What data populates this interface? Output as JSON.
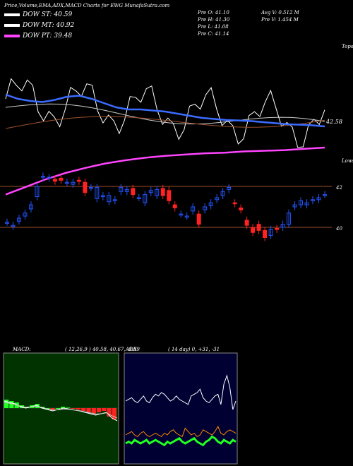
{
  "header": {
    "title": "Price,Volume,EMA,ADX,MACD Charts for EWG MunafaSutra.com",
    "prev_open": "Pre  O: 41.10",
    "prev_high": "Pre  H: 41.30",
    "prev_low": "Pre  L: 41.08",
    "prev_close": "Pre  C: 41.14",
    "avg_volume": "Avg V: 0.512  M",
    "prev_volume": "Pre  V: 1.454  M"
  },
  "legend": [
    {
      "label": "DOW ST: 40.59",
      "color": "#ffffff"
    },
    {
      "label": "DOW MT: 40.92",
      "color": "#ffffff"
    },
    {
      "label": "DOW PT: 39.48",
      "color": "#ff44ff"
    }
  ],
  "price_labels": {
    "tops": "Tops",
    "lows": "Lows",
    "ema_value": "42.58",
    "level_42": "42",
    "level_40": "40"
  },
  "macd": {
    "label": "MACD:",
    "params": "( 12,26,9 ) 40.58, 40.67, -0.09"
  },
  "adx": {
    "label": "ADX",
    "params": "( 14  day) 0, +31, -31"
  },
  "colors": {
    "up": "#2255ff",
    "down": "#ff2222",
    "ema_fast": "#3a6cff",
    "pt": "#ff44ff",
    "adx_plus": "#22ff22",
    "adx_minus": "#ff8800",
    "macd_bg": "#003300",
    "adx_bg": "#000033"
  },
  "chart_data": [
    {
      "type": "candlestick",
      "title": "Price,Volume,EMA,ADX,MACD Charts for EWG MunafaSutra.com",
      "reference_lines": [
        42,
        40
      ],
      "candles": [
        {
          "o": 40.25,
          "c": 40.25
        },
        {
          "o": 40.05,
          "c": 40.1
        },
        {
          "o": 40.3,
          "c": 40.45
        },
        {
          "o": 40.55,
          "c": 40.7
        },
        {
          "o": 40.9,
          "c": 41.1
        },
        {
          "o": 41.5,
          "c": 42.0
        },
        {
          "o": 42.45,
          "c": 42.5
        },
        {
          "o": 42.4,
          "c": 42.45
        },
        {
          "o": 42.35,
          "c": 42.25
        },
        {
          "o": 42.4,
          "c": 42.3
        },
        {
          "o": 42.2,
          "c": 42.2
        },
        {
          "o": 42.1,
          "c": 42.2
        },
        {
          "o": 42.3,
          "c": 42.25
        },
        {
          "o": 42.2,
          "c": 41.7
        },
        {
          "o": 41.95,
          "c": 41.95
        },
        {
          "o": 41.4,
          "c": 41.95
        },
        {
          "o": 41.5,
          "c": 41.55
        },
        {
          "o": 41.25,
          "c": 41.55
        },
        {
          "o": 41.3,
          "c": 41.35
        },
        {
          "o": 41.75,
          "c": 41.95
        },
        {
          "o": 41.75,
          "c": 41.85
        },
        {
          "o": 41.9,
          "c": 41.6
        },
        {
          "o": 41.45,
          "c": 41.45
        },
        {
          "o": 41.2,
          "c": 41.6
        },
        {
          "o": 41.7,
          "c": 41.8
        },
        {
          "o": 41.55,
          "c": 41.85
        },
        {
          "o": 41.9,
          "c": 41.55
        },
        {
          "o": 41.8,
          "c": 41.3
        },
        {
          "o": 41.1,
          "c": 40.95
        },
        {
          "o": 40.65,
          "c": 40.65
        },
        {
          "o": 40.55,
          "c": 40.55
        },
        {
          "o": 40.8,
          "c": 41.0
        },
        {
          "o": 40.65,
          "c": 40.15
        },
        {
          "o": 40.85,
          "c": 41.0
        },
        {
          "o": 41.05,
          "c": 41.2
        },
        {
          "o": 41.35,
          "c": 41.45
        },
        {
          "o": 41.55,
          "c": 41.75
        },
        {
          "o": 41.85,
          "c": 41.95
        },
        {
          "o": 41.2,
          "c": 41.15
        },
        {
          "o": 40.95,
          "c": 40.85
        },
        {
          "o": 40.35,
          "c": 40.1
        },
        {
          "o": 40.0,
          "c": 39.75
        },
        {
          "o": 40.15,
          "c": 39.85
        },
        {
          "o": 39.85,
          "c": 39.5
        },
        {
          "o": 39.6,
          "c": 39.9
        },
        {
          "o": 39.95,
          "c": 39.9
        },
        {
          "o": 40.0,
          "c": 40.15
        },
        {
          "o": 40.15,
          "c": 40.7
        },
        {
          "o": 41.0,
          "c": 41.1
        },
        {
          "o": 41.1,
          "c": 41.3
        },
        {
          "o": 41.1,
          "c": 41.2
        },
        {
          "o": 41.3,
          "c": 41.35
        },
        {
          "o": 41.35,
          "c": 41.45
        },
        {
          "o": 41.6,
          "c": 41.6
        }
      ],
      "ema_fast": [
        44.2,
        44.0,
        43.9,
        43.85,
        43.95,
        44.1,
        44.15,
        44.0,
        43.8,
        43.6,
        43.5,
        43.5,
        43.45,
        43.4,
        43.3,
        43.2,
        43.1,
        43.05,
        43.0,
        42.98,
        42.95,
        42.9,
        42.85,
        42.8,
        42.78,
        42.75,
        42.7
      ],
      "dow_pt": [
        38.8,
        39.4,
        40.0,
        40.5,
        40.9,
        41.25,
        41.5,
        41.7,
        41.85,
        41.95,
        42.05,
        42.1,
        42.2,
        42.25,
        42.3,
        42.4,
        42.5
      ]
    },
    {
      "type": "line",
      "title": "MACD",
      "series": [
        {
          "values": [
            0.3,
            0.25,
            0.2,
            0.1,
            0.05,
            0.1,
            0.15,
            0.05,
            0,
            -0.05,
            0,
            0.05,
            0.02,
            -0.02,
            -0.05,
            -0.1,
            -0.15,
            -0.2,
            -0.15,
            -0.1,
            -0.3,
            -0.4
          ]
        },
        {
          "values": [
            0.25,
            0.22,
            0.18,
            0.12,
            0.08,
            0.1,
            0.12,
            0.08,
            0.02,
            -0.02,
            -0.01,
            0.02,
            0.01,
            -0.02,
            -0.04,
            -0.08,
            -0.12,
            -0.16,
            -0.15,
            -0.12,
            -0.22,
            -0.3
          ]
        }
      ]
    },
    {
      "type": "line",
      "title": "ADX",
      "series": [
        {
          "values": [
            30,
            31,
            32,
            30,
            29,
            31,
            33,
            30,
            29,
            32,
            34,
            33,
            35,
            34,
            32,
            30,
            31,
            33,
            31,
            30,
            29,
            28,
            33,
            34,
            35,
            37,
            32,
            30,
            29,
            31,
            33,
            34,
            28,
            40,
            45,
            38,
            25,
            30
          ]
        },
        {
          "values": [
            10,
            11,
            12,
            10,
            9,
            11,
            12,
            10,
            9,
            10,
            11,
            10,
            9,
            11,
            10,
            12,
            13,
            11,
            10,
            9,
            14,
            12,
            10,
            11,
            9,
            10,
            13,
            12,
            11,
            10,
            12,
            15,
            11,
            10,
            12,
            13,
            12,
            11
          ]
        },
        {
          "values": [
            5,
            6,
            5,
            7,
            6,
            5,
            6,
            7,
            5,
            6,
            7,
            6,
            5,
            4,
            6,
            5,
            6,
            7,
            8,
            6,
            5,
            6,
            7,
            8,
            6,
            5,
            4,
            6,
            7,
            9,
            8,
            6,
            5,
            7,
            6,
            5,
            7,
            6
          ]
        }
      ]
    }
  ]
}
